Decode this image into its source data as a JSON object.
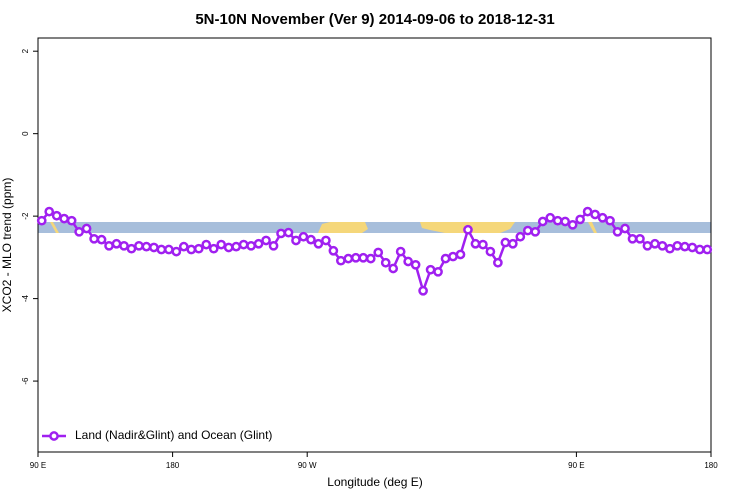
{
  "chart_data": {
    "type": "line",
    "title": "5N-10N November (Ver 9)   2014-09-06 to 2018-12-31",
    "x_label": "Longitude (deg E)",
    "y_label": "XCO2 - MLO trend (ppm)",
    "x": [
      92.5,
      97.5,
      102.5,
      107.5,
      112.5,
      117.5,
      122.5,
      127.5,
      132.5,
      137.5,
      142.5,
      147.5,
      152.5,
      157.5,
      162.5,
      167.5,
      172.5,
      177.5,
      182.5,
      187.5,
      192.5,
      197.5,
      202.5,
      207.5,
      212.5,
      217.5,
      222.5,
      227.5,
      232.5,
      237.5,
      242.5,
      247.5,
      252.5,
      257.5,
      262.5,
      267.5,
      272.5,
      277.5,
      282.5,
      287.5,
      292.5,
      297.5,
      302.5,
      307.5,
      312.5,
      317.5,
      322.5,
      327.5,
      332.5,
      337.5,
      342.5,
      347.5,
      352.5,
      357.5,
      362.5,
      367.5,
      372.5,
      377.5,
      382.5,
      387.5,
      392.5,
      397.5,
      402.5,
      407.5,
      412.5,
      417.5,
      422.5,
      427.5,
      432.5,
      437.5,
      442.5,
      447.5,
      452.5,
      457.5,
      462.5,
      467.5,
      472.5,
      477.5,
      482.5,
      487.5,
      492.5,
      497.5,
      502.5,
      507.5,
      512.5,
      517.5,
      522.5,
      527.5,
      532.5,
      537.5
    ],
    "series": [
      {
        "name": "Land (Nadir&Glint) and Ocean (Glint)",
        "color": "#a020f0",
        "values": [
          -2.11,
          -1.89,
          -1.99,
          -2.06,
          -2.11,
          -2.38,
          -2.3,
          -2.55,
          -2.57,
          -2.72,
          -2.67,
          -2.72,
          -2.79,
          -2.72,
          -2.74,
          -2.76,
          -2.81,
          -2.81,
          -2.86,
          -2.74,
          -2.81,
          -2.79,
          -2.69,
          -2.79,
          -2.69,
          -2.76,
          -2.74,
          -2.69,
          -2.72,
          -2.67,
          -2.59,
          -2.72,
          -2.42,
          -2.4,
          -2.59,
          -2.5,
          -2.57,
          -2.67,
          -2.59,
          -2.84,
          -3.08,
          -3.03,
          -3.01,
          -3.01,
          -3.03,
          -2.88,
          -3.13,
          -3.27,
          -2.86,
          -3.1,
          -3.18,
          -3.81,
          -3.3,
          -3.35,
          -3.03,
          -2.98,
          -2.93,
          -2.33,
          -2.67,
          -2.69,
          -2.86,
          -3.13,
          -2.64,
          -2.67,
          -2.5,
          -2.35,
          -2.38,
          -2.13,
          -2.04,
          -2.11,
          -2.13,
          -2.21,
          -2.08,
          -1.89,
          -1.96,
          -2.04,
          -2.11,
          -2.38,
          -2.3,
          -2.55,
          -2.55,
          -2.72,
          -2.67,
          -2.72,
          -2.79,
          -2.72,
          -2.74,
          -2.76,
          -2.81,
          -2.81
        ]
      }
    ],
    "xlim": [
      90,
      540
    ],
    "xticks": [
      {
        "value": 90,
        "label": "90 E"
      },
      180,
      {
        "value": 270,
        "label": "90 W"
      },
      {
        "value": 450,
        "label": "90 E"
      },
      {
        "value": 540,
        "label": "180"
      }
    ],
    "ylim": [
      -7.72,
      2.32
    ],
    "yticks": [
      2,
      0,
      -2,
      -4,
      -6
    ],
    "legend": "bottom-left"
  }
}
